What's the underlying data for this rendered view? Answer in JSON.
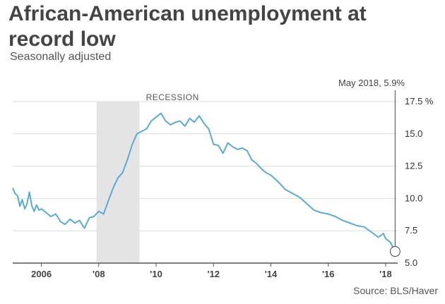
{
  "title": "African-American unemployment at record low",
  "subtitle": "Seasonally adjusted",
  "source": "Source: BLS/Haver",
  "chart_data": {
    "type": "line",
    "title": "African-American unemployment at record low",
    "subtitle": "Seasonally adjusted",
    "xlabel": "",
    "ylabel": "",
    "xlim": [
      2005.0,
      2018.42
    ],
    "ylim": [
      5.0,
      17.5
    ],
    "yticks": [
      5.0,
      7.5,
      10.0,
      12.5,
      15.0,
      17.5
    ],
    "ytick_labels": [
      "5.0",
      "7.5",
      "10.0",
      "12.5",
      "15.0",
      "17.5 %"
    ],
    "xticks": [
      2006,
      2008,
      2010,
      2012,
      2014,
      2016,
      2018
    ],
    "xtick_labels": [
      "2006",
      "'08",
      "'10",
      "'12",
      "'14",
      "'16",
      "'18"
    ],
    "grid": true,
    "recession": {
      "label": "RECESSION",
      "start": 2007.92,
      "end": 2009.42
    },
    "annotation": {
      "label": "May 2018, 5.9%",
      "x": 2018.33,
      "y": 5.9
    },
    "series": [
      {
        "color": "#5aaad6",
        "x": [
          2005.0,
          2005.08,
          2005.17,
          2005.25,
          2005.33,
          2005.42,
          2005.5,
          2005.58,
          2005.67,
          2005.75,
          2005.83,
          2005.92,
          2006.0,
          2006.17,
          2006.33,
          2006.5,
          2006.67,
          2006.83,
          2007.0,
          2007.17,
          2007.33,
          2007.5,
          2007.67,
          2007.83,
          2008.0,
          2008.17,
          2008.33,
          2008.5,
          2008.67,
          2008.83,
          2009.0,
          2009.17,
          2009.33,
          2009.5,
          2009.67,
          2009.83,
          2010.0,
          2010.17,
          2010.33,
          2010.5,
          2010.67,
          2010.83,
          2011.0,
          2011.17,
          2011.33,
          2011.5,
          2011.67,
          2011.83,
          2012.0,
          2012.17,
          2012.33,
          2012.5,
          2012.67,
          2012.83,
          2013.0,
          2013.17,
          2013.33,
          2013.5,
          2013.67,
          2013.83,
          2014.0,
          2014.25,
          2014.5,
          2014.75,
          2015.0,
          2015.25,
          2015.5,
          2015.75,
          2016.0,
          2016.25,
          2016.5,
          2016.75,
          2017.0,
          2017.25,
          2017.5,
          2017.75,
          2017.92,
          2018.0,
          2018.17,
          2018.33
        ],
        "y": [
          10.8,
          10.4,
          10.2,
          9.4,
          9.9,
          9.2,
          9.6,
          10.5,
          9.4,
          9.0,
          9.5,
          9.1,
          9.2,
          8.9,
          8.6,
          8.8,
          8.2,
          8.0,
          8.4,
          8.1,
          8.3,
          7.7,
          8.5,
          8.6,
          9.0,
          8.8,
          9.8,
          10.8,
          11.6,
          12.0,
          13.0,
          14.2,
          15.0,
          15.2,
          15.4,
          16.0,
          16.3,
          16.6,
          16.0,
          15.7,
          15.9,
          16.0,
          15.6,
          16.2,
          15.9,
          16.4,
          15.8,
          15.4,
          14.2,
          14.1,
          13.5,
          14.3,
          14.0,
          13.8,
          13.9,
          13.7,
          13.0,
          12.7,
          12.3,
          12.0,
          11.8,
          11.3,
          10.7,
          10.4,
          10.1,
          9.6,
          9.1,
          8.9,
          8.8,
          8.6,
          8.3,
          8.1,
          7.9,
          7.8,
          7.4,
          7.0,
          7.3,
          6.9,
          6.6,
          5.9
        ]
      }
    ]
  }
}
